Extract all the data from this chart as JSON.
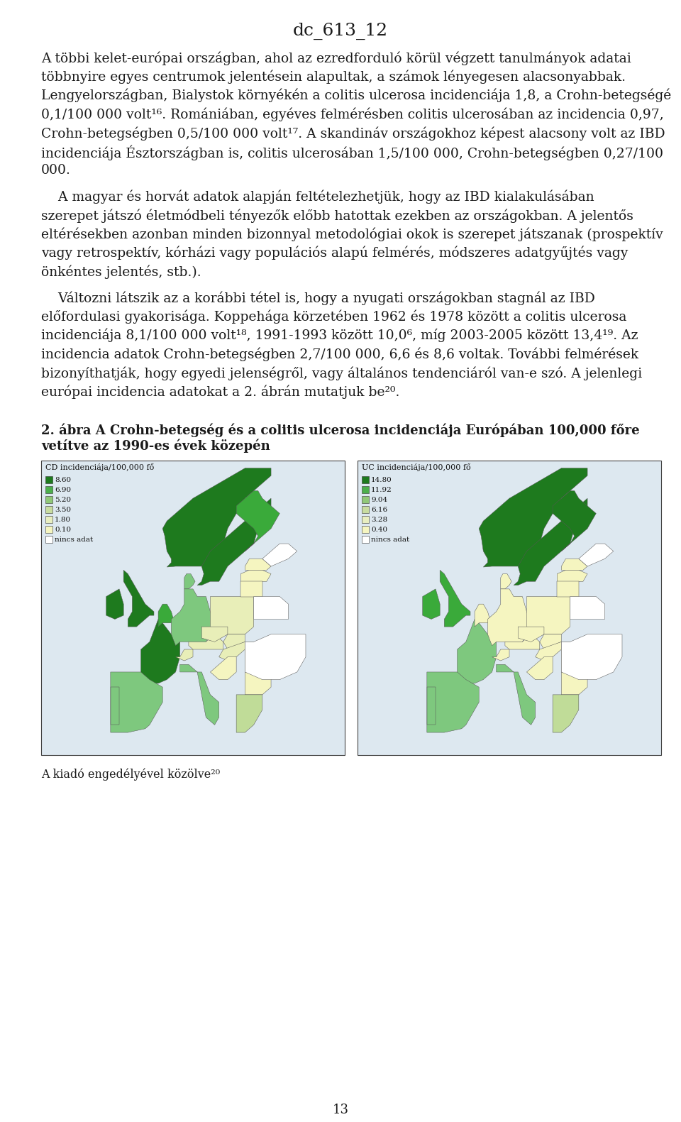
{
  "title": "dc_613_12",
  "page_number": "13",
  "bg_color": "#ffffff",
  "text_color": "#1a1a1a",
  "title_fontsize": 18,
  "body_fontsize": 13.5,
  "fig_title_fontsize": 13.0,
  "caption_fontsize": 11.5,
  "map1_title": "CD incidenciája/100,000 fő",
  "map2_title": "UC incidenciája/100,000 fő",
  "map1_legend_values": [
    "8.60",
    "6.90",
    "5.20",
    "3.50",
    "1.80",
    "0.10",
    "nincs adat"
  ],
  "map1_legend_colors": [
    "#1e7a1e",
    "#4caf4c",
    "#90c878",
    "#c8dca0",
    "#e8eec0",
    "#f5f5c0",
    "#ffffff"
  ],
  "map2_legend_values": [
    "14.80",
    "11.92",
    "9.04",
    "6.16",
    "3.28",
    "0.40",
    "nincs adat"
  ],
  "map2_legend_colors": [
    "#1e7a1e",
    "#4caf4c",
    "#90c878",
    "#c8dca0",
    "#e8eec0",
    "#f5f5c0",
    "#ffffff"
  ],
  "figure_caption": "A kiadó engedélyével közölve²⁰",
  "lines_p1": [
    "A többi kelet-európai országban, ahol az ezredforduló körül végzett tanulmányok adatai",
    "többnyire egyes centrumok jelentésein alapultak, a számok lényegesen alacsonyabbak.",
    "Lengyelországban, Bialystok környékén a colitis ulcerosa incidenciája 1,8, a Crohn-betegségé",
    "0,1/100 000 volt¹⁶. Romániában, egyéves felmérésben colitis ulcerosában az incidencia 0,97,",
    "Crohn-betegségben 0,5/100 000 volt¹⁷. A skandináv országokhoz képest alacsony volt az IBD",
    "incidenciája Észtországban is, colitis ulcerosában 1,5/100 000, Crohn-betegségben 0,27/100",
    "000."
  ],
  "lines_p2_indent": "    A magyar és horvát adatok alapján feltételezhetjük, hogy az IBD kialakulásában",
  "lines_p2": [
    "szerepet játszó életmódbeli tényezők előbb hatottak ezekben az országokban. A jelentős",
    "eltérésekben azonban minden bizonnyal metodológiai okok is szerepet játszanak (prospektív",
    "vagy retrospektív, kórházi vagy populációs alapú felmérés, módszeres adatgyűjtés vagy",
    "önkéntes jelentés, stb.)."
  ],
  "lines_p3_indent": "    Változni látszik az a korábbi tétel is, hogy a nyugati országokban stagnál az IBD",
  "lines_p3": [
    "előfordulasi gyakorisága. Koppehága körzetében 1962 és 1978 között a colitis ulcerosa",
    "incidenciája 8,1/100 000 volt¹⁸, 1991-1993 között 10,0⁶, míg 2003-2005 között 13,4¹⁹. Az",
    "incidencia adatok Crohn-betegségben 2,7/100 000, 6,6 és 8,6 voltak. További felmérések",
    "bizonyíthatják, hogy egyedi jelenségről, vagy általános tendenciáról van-e szó. A jelenlegi",
    "európai incidencia adatokat a 2. ábrán mutatjuk be²⁰."
  ],
  "fig_title_line1": "2. ábra A Crohn-betegség és a colitis ulcerosa incidenciája Európában 100,000 főre",
  "fig_title_line2": "vetítve az 1990-es évek közepén"
}
